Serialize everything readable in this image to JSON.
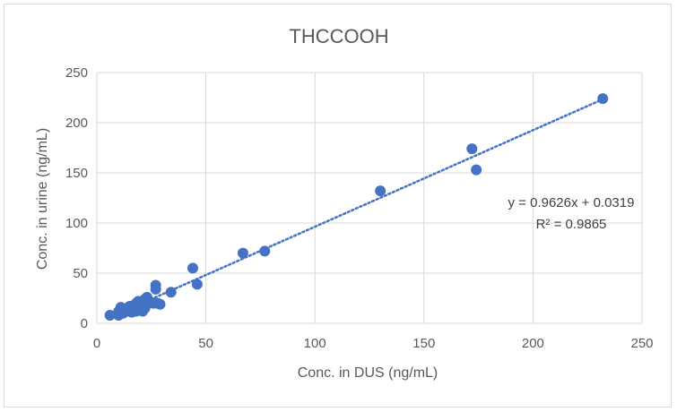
{
  "chart_data": {
    "type": "scatter",
    "title": "THCCOOH",
    "xlabel": "Conc. in DUS (ng/mL)",
    "ylabel": "Conc. in urine (ng/mL)",
    "xlim": [
      0,
      250
    ],
    "ylim": [
      0,
      250
    ],
    "xticks": [
      "0",
      "50",
      "100",
      "150",
      "200",
      "250"
    ],
    "yticks": [
      "0",
      "50",
      "100",
      "150",
      "200",
      "250"
    ],
    "grid": true,
    "legend": "none",
    "colors": {
      "marker": "#4472c4",
      "trendline": "#4472c4",
      "grid": "#d9d9d9",
      "text": "#595959"
    },
    "points": [
      {
        "x": 6,
        "y": 8
      },
      {
        "x": 10,
        "y": 8
      },
      {
        "x": 10,
        "y": 12
      },
      {
        "x": 11,
        "y": 16
      },
      {
        "x": 12,
        "y": 10
      },
      {
        "x": 13,
        "y": 13
      },
      {
        "x": 14,
        "y": 12
      },
      {
        "x": 15,
        "y": 14
      },
      {
        "x": 15,
        "y": 17
      },
      {
        "x": 16,
        "y": 11
      },
      {
        "x": 17,
        "y": 15
      },
      {
        "x": 17,
        "y": 18
      },
      {
        "x": 18,
        "y": 12
      },
      {
        "x": 18,
        "y": 20
      },
      {
        "x": 19,
        "y": 14
      },
      {
        "x": 19,
        "y": 22
      },
      {
        "x": 20,
        "y": 13
      },
      {
        "x": 20,
        "y": 17
      },
      {
        "x": 21,
        "y": 12
      },
      {
        "x": 21,
        "y": 21
      },
      {
        "x": 22,
        "y": 15
      },
      {
        "x": 22,
        "y": 24
      },
      {
        "x": 23,
        "y": 19
      },
      {
        "x": 23,
        "y": 26
      },
      {
        "x": 24,
        "y": 22
      },
      {
        "x": 25,
        "y": 21
      },
      {
        "x": 26,
        "y": 20
      },
      {
        "x": 27,
        "y": 34
      },
      {
        "x": 27,
        "y": 38
      },
      {
        "x": 28,
        "y": 20
      },
      {
        "x": 29,
        "y": 19
      },
      {
        "x": 34,
        "y": 31
      },
      {
        "x": 44,
        "y": 55
      },
      {
        "x": 46,
        "y": 39
      },
      {
        "x": 67,
        "y": 70
      },
      {
        "x": 77,
        "y": 72
      },
      {
        "x": 130,
        "y": 132
      },
      {
        "x": 172,
        "y": 174
      },
      {
        "x": 174,
        "y": 153
      },
      {
        "x": 232,
        "y": 224
      }
    ],
    "trendline": {
      "type": "linear",
      "slope": 0.9626,
      "intercept": 0.0319
    },
    "annotations": [
      "y = 0.9626x + 0.0319",
      "R² = 0.9865"
    ]
  }
}
